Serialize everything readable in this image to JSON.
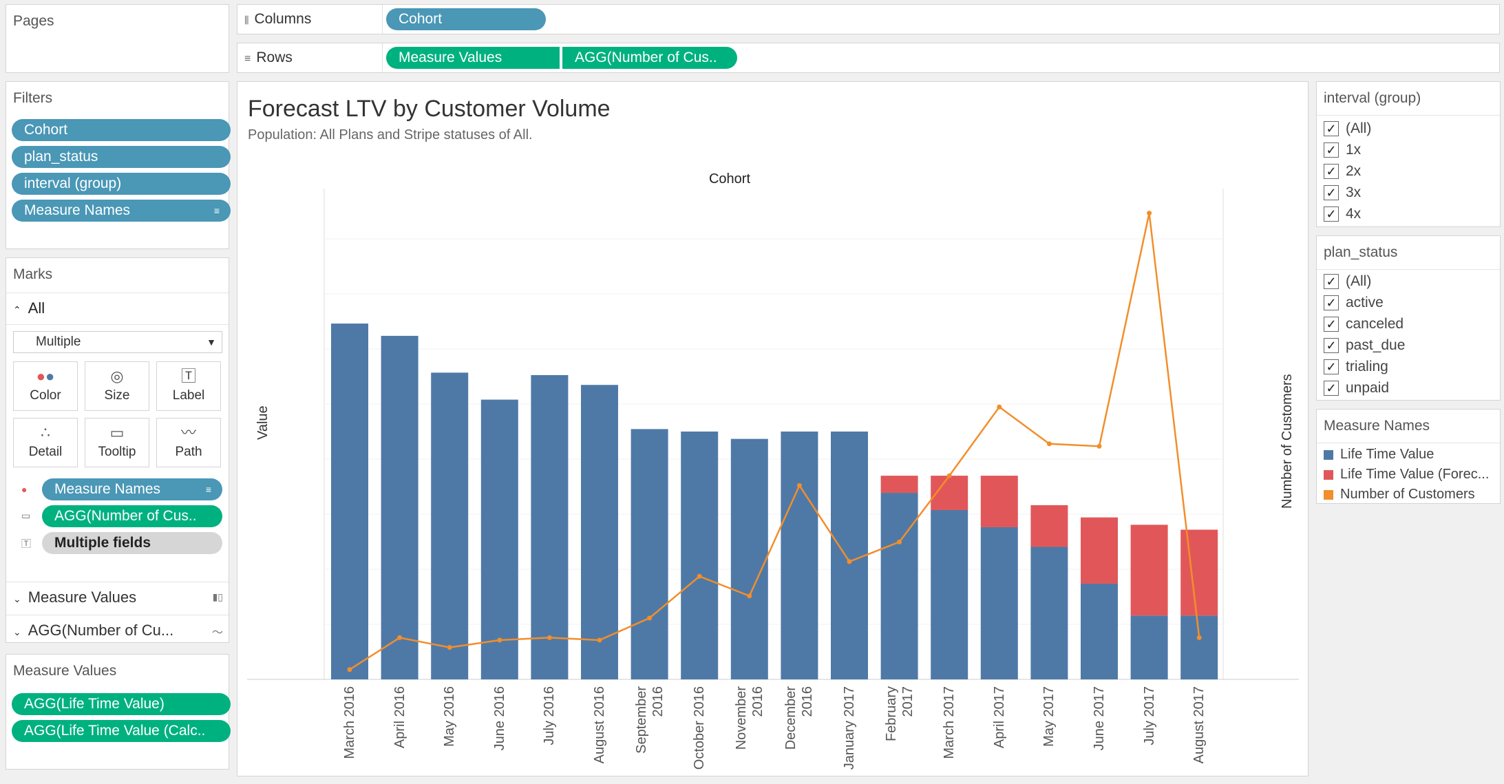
{
  "pages": {
    "title": "Pages"
  },
  "columns_shelf": {
    "label": "Columns",
    "pills": [
      "Cohort"
    ]
  },
  "rows_shelf": {
    "label": "Rows",
    "pills": [
      "Measure Values",
      "AGG(Number of Cus.."
    ]
  },
  "filters": {
    "title": "Filters",
    "pills": [
      "Cohort",
      "plan_status",
      "interval (group)",
      "Measure Names"
    ]
  },
  "marks": {
    "title": "Marks",
    "all_label": "All",
    "mark_type": "Multiple",
    "buttons": [
      "Color",
      "Size",
      "Label",
      "Detail",
      "Tooltip",
      "Path"
    ],
    "fields": [
      "Measure Names",
      "AGG(Number of Cus..",
      "Multiple fields"
    ],
    "sections": [
      "Measure Values",
      "AGG(Number of Cu..."
    ]
  },
  "measure_values": {
    "title": "Measure Values",
    "pills": [
      "AGG(Life Time Value)",
      "AGG(Life Time Value (Calc.."
    ]
  },
  "interval_filter": {
    "title": "interval (group)",
    "items": [
      "(All)",
      "1x",
      "2x",
      "3x",
      "4x"
    ]
  },
  "plan_status_filter": {
    "title": "plan_status",
    "items": [
      "(All)",
      "active",
      "canceled",
      "past_due",
      "trialing",
      "unpaid"
    ]
  },
  "legend": {
    "title": "Measure Names",
    "items": [
      {
        "label": "Life Time Value",
        "color": "#4e79a7"
      },
      {
        "label": "Life Time Value (Forec...",
        "color": "#e15759"
      },
      {
        "label": "Number of Customers",
        "color": "#f28e2b"
      }
    ]
  },
  "chart_data": {
    "type": "bar",
    "title": "Forecast LTV by Customer Volume",
    "subtitle": "Population: All Plans and Stripe statuses of All.",
    "column_header": "Cohort",
    "ylabel": "Value",
    "ylabel_right": "Number of Customers",
    "ylim": [
      0,
      100
    ],
    "ylim_right": [
      0,
      100
    ],
    "categories": [
      "March 2016",
      "April 2016",
      "May 2016",
      "June 2016",
      "July 2016",
      "August 2016",
      "September 2016",
      "October 2016",
      "November 2016",
      "December 2016",
      "January 2017",
      "February 2017",
      "March 2017",
      "April 2017",
      "May 2017",
      "June 2017",
      "July 2017",
      "August 2017"
    ],
    "series": [
      {
        "name": "Life Time Value",
        "type": "bar",
        "color": "#4e79a7",
        "values": [
          72.5,
          70,
          62.5,
          57,
          62,
          60,
          51,
          50.5,
          49,
          50.5,
          50.5,
          38,
          34.5,
          31,
          27,
          19.5,
          13,
          13
        ]
      },
      {
        "name": "Life Time Value (Forecast)",
        "type": "bar",
        "color": "#e15759",
        "values": [
          0,
          0,
          0,
          0,
          0,
          0,
          0,
          0,
          0,
          0,
          0,
          3.5,
          7,
          10.5,
          8.5,
          13.5,
          18.5,
          17.5
        ]
      },
      {
        "name": "Number of Customers",
        "type": "line",
        "color": "#f28e2b",
        "values": [
          2,
          8.5,
          6.5,
          8,
          8.5,
          8,
          12.5,
          21,
          17,
          39.5,
          24,
          28,
          41.5,
          55.5,
          48,
          47.5,
          95,
          8.5
        ]
      }
    ]
  }
}
